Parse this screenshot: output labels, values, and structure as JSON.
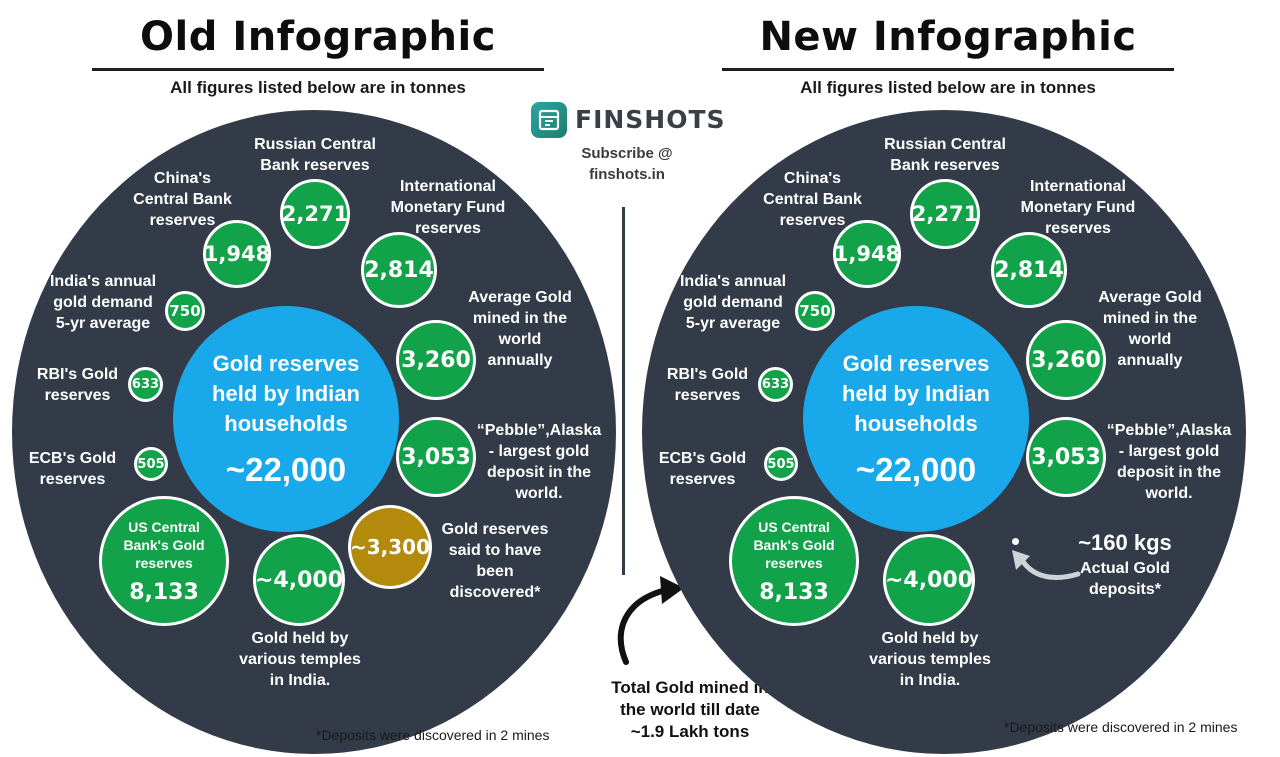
{
  "old": {
    "title": "Old Infographic",
    "subtitle": "All figures listed below are in tonnes",
    "center_label": "Gold reserves\nheld by Indian\nhouseholds",
    "center_value": "~22,000",
    "bubbles": {
      "china_value": "1,948",
      "russia_value": "2,271",
      "imf_value": "2,814",
      "india_value": "750",
      "mined_value": "3,260",
      "rbi_value": "633",
      "pebble_value": "3,053",
      "ecb_value": "505",
      "us_label": "US Central\nBank's Gold\nreserves",
      "us_value": "8,133",
      "temples_value": "~4,000",
      "discovered_value": "~3,300"
    },
    "labels": {
      "china": "China's\nCentral Bank\nreserves",
      "russia": "Russian Central\nBank reserves",
      "imf": "International\nMonetary Fund\nreserves",
      "india": "India's annual\ngold demand\n5-yr average",
      "mined": "Average Gold\nmined in the\nworld\nannually",
      "rbi": "RBI's Gold\nreserves",
      "pebble": "“Pebble”,Alaska\n- largest gold\ndeposit in the\nworld.",
      "ecb": "ECB's Gold\nreserves",
      "discovered": "Gold reserves\nsaid to have\nbeen\ndiscovered*",
      "temples": "Gold held by\nvarious temples\nin India."
    },
    "footnote": "*Deposits were discovered in 2 mines"
  },
  "new": {
    "title": "New Infographic",
    "subtitle": "All figures listed below are in tonnes",
    "center_label": "Gold reserves\nheld by Indian\nhouseholds",
    "center_value": "~22,000",
    "bubbles": {
      "china_value": "1,948",
      "russia_value": "2,271",
      "imf_value": "2,814",
      "india_value": "750",
      "mined_value": "3,260",
      "rbi_value": "633",
      "pebble_value": "3,053",
      "ecb_value": "505",
      "us_label": "US Central\nBank's Gold\nreserves",
      "us_value": "8,133",
      "temples_value": "~4,000"
    },
    "labels": {
      "china": "China's\nCentral Bank\nreserves",
      "russia": "Russian Central\nBank reserves",
      "imf": "International\nMonetary Fund\nreserves",
      "india": "India's annual\ngold demand\n5-yr average",
      "mined": "Average Gold\nmined in the\nworld\nannually",
      "rbi": "RBI's Gold\nreserves",
      "pebble": "“Pebble”,Alaska\n- largest gold\ndeposit in the\nworld.",
      "ecb": "ECB's Gold\nreserves",
      "temples": "Gold held by\nvarious temples\nin India.",
      "kgs_value": "~160 kgs",
      "kgs_label": "Actual Gold\ndeposits*"
    },
    "footnote": "*Deposits were discovered in 2 mines"
  },
  "brand": {
    "name": "FINSHOTS",
    "subscribe": "Subscribe @\nfinshots.in"
  },
  "total_mined": "Total Gold mined in\nthe world till date\n~1.9 Lakh tons",
  "colors": {
    "dark_circle": "#333b48",
    "green": "#12a24a",
    "gold": "#b38a0c",
    "blue": "#19a9ea"
  }
}
